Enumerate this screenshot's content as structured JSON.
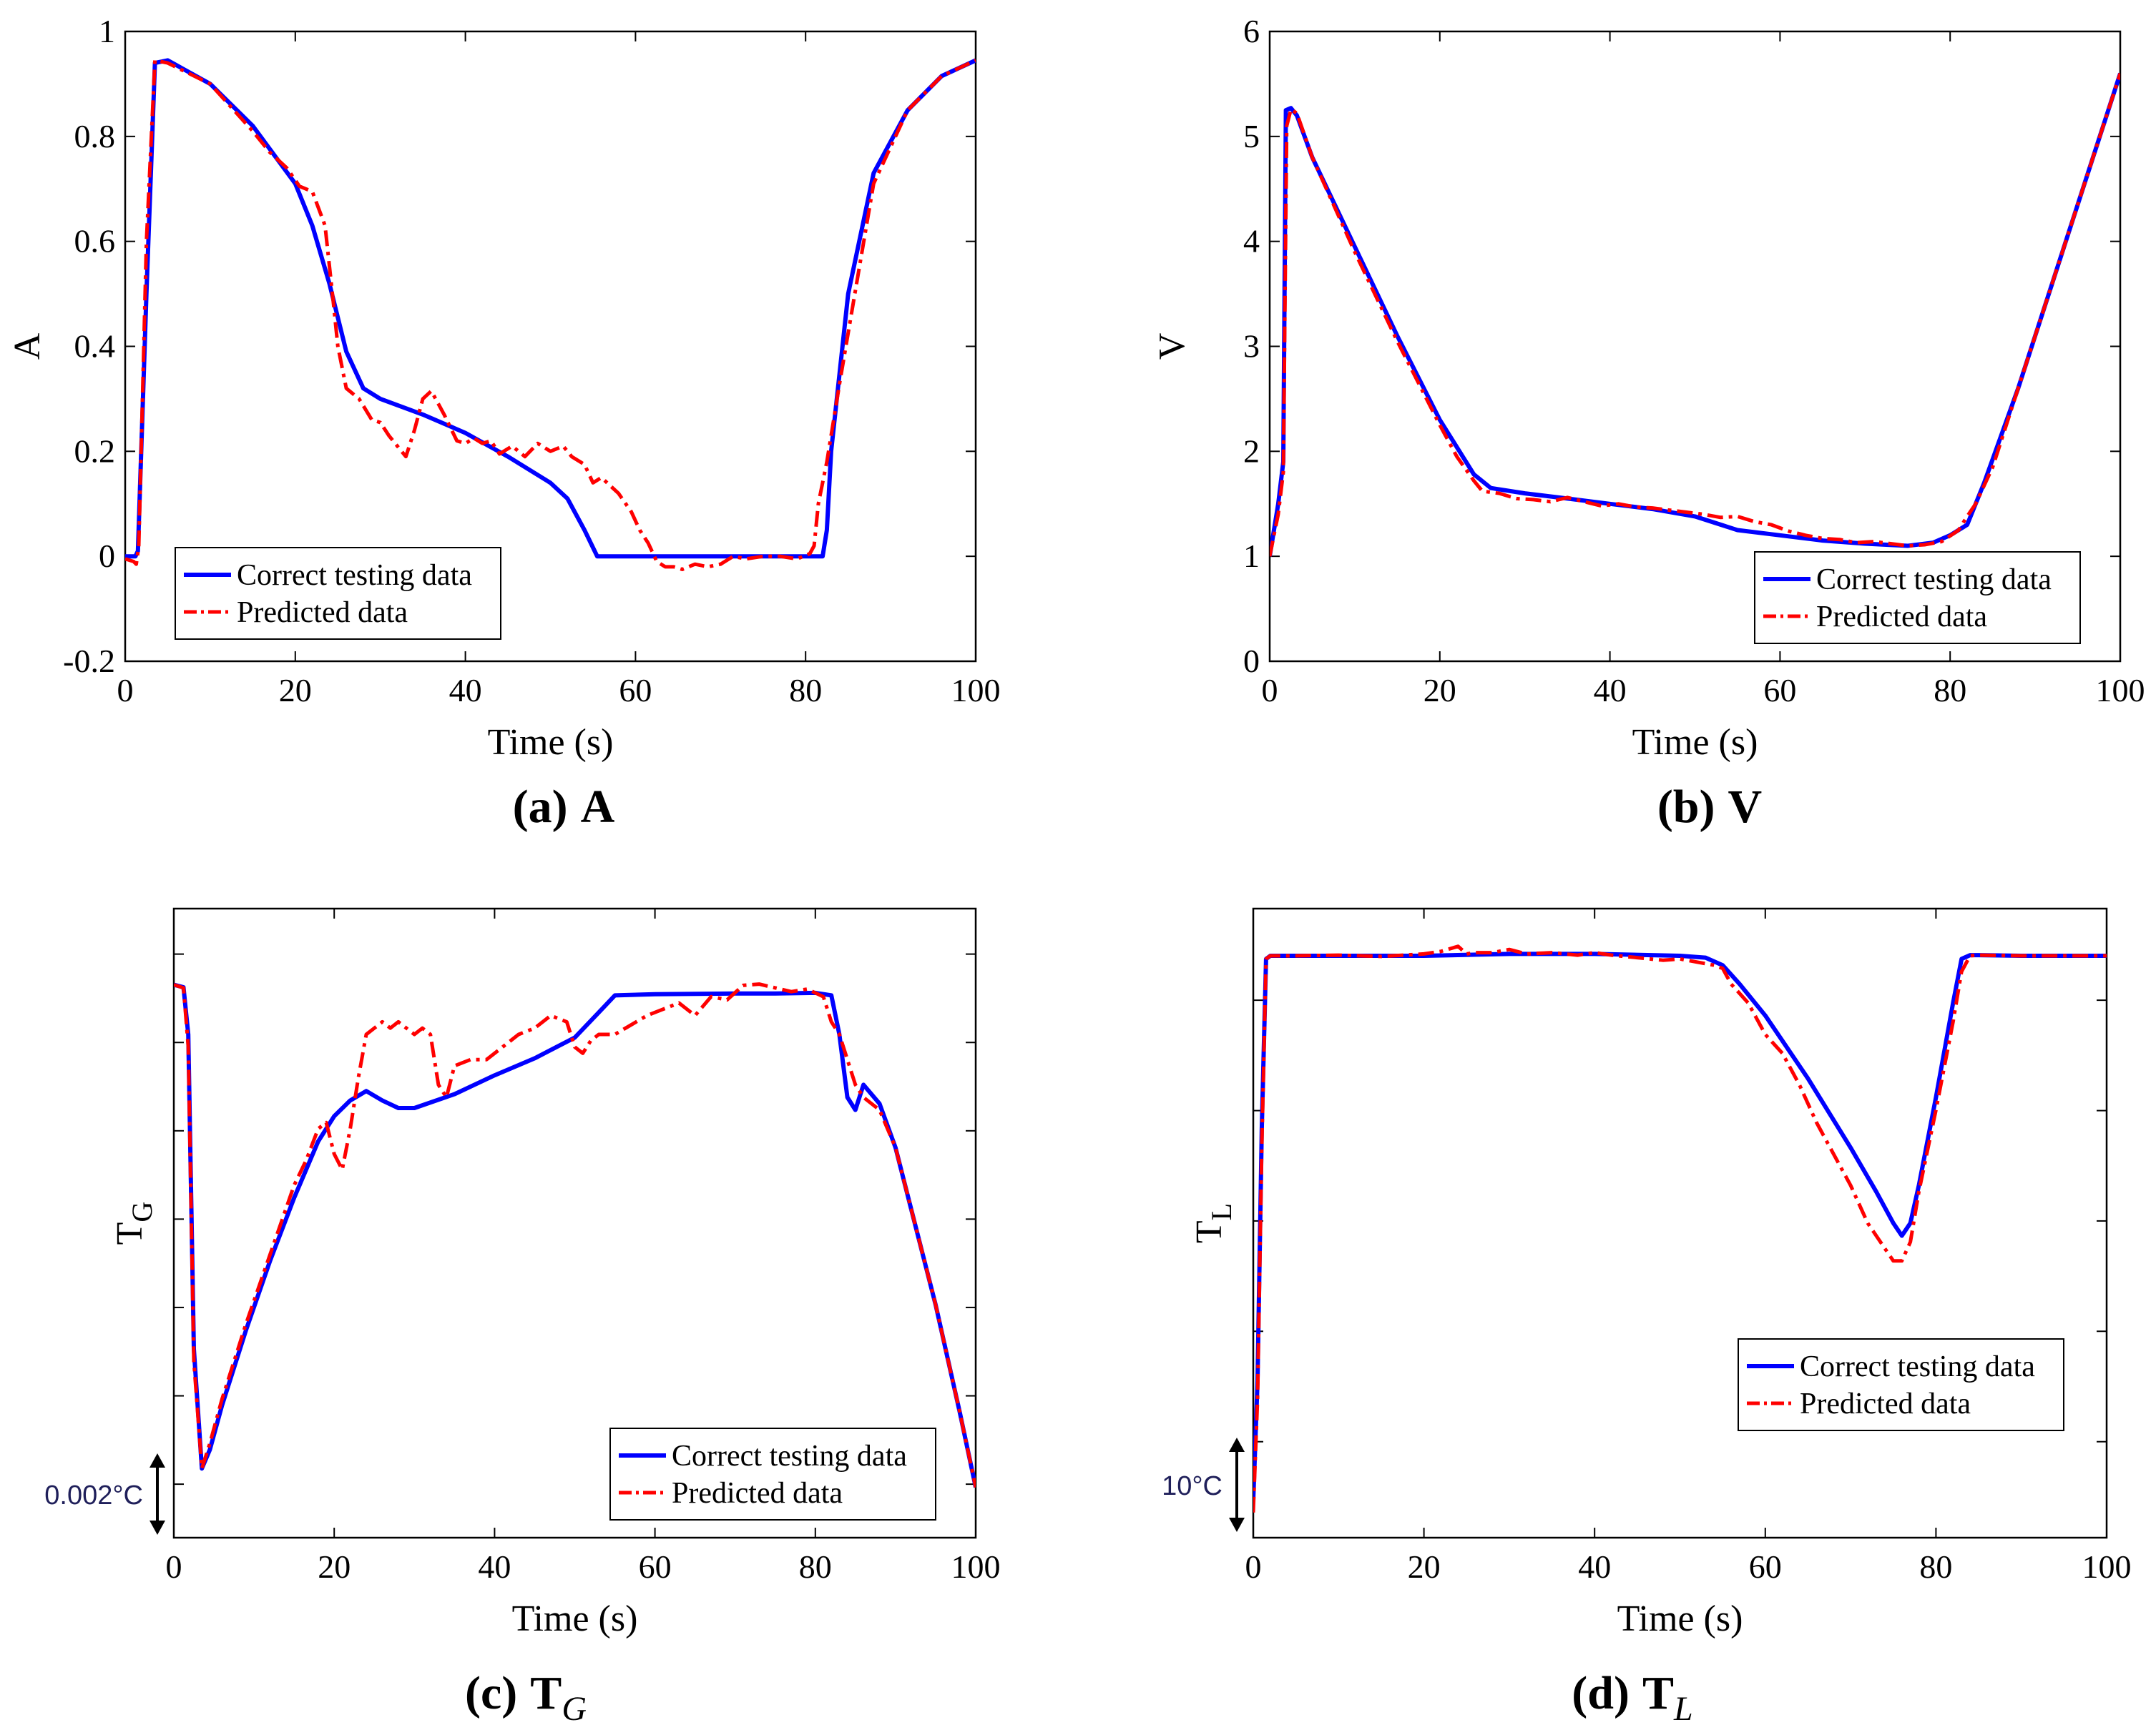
{
  "colors": {
    "correct": "#0000ff",
    "predicted": "#ff0000",
    "axis": "#000000",
    "scale_text": "#1f1f5a"
  },
  "chart_data": [
    {
      "id": "a",
      "type": "line",
      "caption_label": "(a)",
      "caption_var": "A",
      "caption_sub": "",
      "xlabel": "Time (s)",
      "ylabel": "A",
      "ylabel_sub": "",
      "xlim": [
        0,
        100
      ],
      "ylim": [
        -0.2,
        1
      ],
      "xticks": [
        0,
        20,
        40,
        60,
        80,
        100
      ],
      "xtick_labels": [
        "0",
        "20",
        "40",
        "60",
        "80",
        "100"
      ],
      "yticks": [
        -0.2,
        0,
        0.2,
        0.4,
        0.6,
        0.8,
        1
      ],
      "ytick_labels": [
        "-0.2",
        "0",
        "0.2",
        "0.4",
        "0.6",
        "0.8",
        "1"
      ],
      "legend_position": "bottom-left",
      "legend": [
        "Correct testing data",
        "Predicted data"
      ],
      "scale_annotation": "",
      "series": [
        {
          "name": "Correct testing data",
          "style": "solid",
          "x": [
            0,
            1.2,
            1.5,
            2.5,
            3.5,
            5,
            10,
            15,
            20,
            22,
            24,
            26,
            28,
            30,
            35,
            40,
            45,
            50,
            52,
            54,
            55.5,
            60,
            70,
            80,
            82,
            82.5,
            83,
            85,
            88,
            92,
            96,
            100
          ],
          "y": [
            0,
            0,
            0.01,
            0.5,
            0.94,
            0.945,
            0.9,
            0.82,
            0.71,
            0.63,
            0.52,
            0.39,
            0.32,
            0.3,
            0.27,
            0.235,
            0.19,
            0.14,
            0.11,
            0.05,
            0,
            0,
            0,
            0,
            0,
            0.05,
            0.2,
            0.5,
            0.73,
            0.85,
            0.915,
            0.945
          ]
        },
        {
          "name": "Predicted data",
          "style": "dashdot",
          "x": [
            0,
            1,
            1.3,
            1.6,
            2.5,
            3.5,
            5,
            10,
            15,
            17,
            19,
            20.5,
            22,
            23.5,
            24.5,
            25,
            26,
            27.5,
            29,
            30,
            31,
            32,
            33,
            34,
            35,
            36,
            37.5,
            39,
            40,
            41,
            42,
            43,
            44,
            45.5,
            47,
            48.5,
            50,
            51.5,
            52.5,
            54,
            55,
            56,
            58,
            59.5,
            60.5,
            61.5,
            62.5,
            63.5,
            64.5,
            65.5,
            67,
            68.5,
            70,
            71.5,
            73,
            75,
            77,
            79,
            80.5,
            81,
            81.5,
            82.5,
            84,
            86,
            88,
            92,
            96,
            100
          ],
          "y": [
            -0.005,
            -0.01,
            -0.015,
            0.02,
            0.6,
            0.945,
            0.94,
            0.9,
            0.81,
            0.77,
            0.74,
            0.705,
            0.695,
            0.63,
            0.48,
            0.4,
            0.32,
            0.3,
            0.26,
            0.255,
            0.23,
            0.21,
            0.19,
            0.24,
            0.3,
            0.315,
            0.27,
            0.22,
            0.215,
            0.225,
            0.215,
            0.22,
            0.195,
            0.21,
            0.19,
            0.215,
            0.2,
            0.21,
            0.19,
            0.175,
            0.14,
            0.15,
            0.12,
            0.085,
            0.05,
            0.025,
            -0.01,
            -0.02,
            -0.02,
            -0.025,
            -0.015,
            -0.02,
            -0.015,
            0,
            -0.005,
            0,
            0,
            -0.005,
            0.005,
            0.02,
            0.1,
            0.18,
            0.33,
            0.52,
            0.71,
            0.85,
            0.915,
            0.945
          ]
        }
      ]
    },
    {
      "id": "b",
      "type": "line",
      "caption_label": "(b)",
      "caption_var": "V",
      "caption_sub": "",
      "xlabel": "Time (s)",
      "ylabel": "V",
      "ylabel_sub": "",
      "xlim": [
        0,
        100
      ],
      "ylim": [
        0,
        6
      ],
      "xticks": [
        0,
        20,
        40,
        60,
        80,
        100
      ],
      "xtick_labels": [
        "0",
        "20",
        "40",
        "60",
        "80",
        "100"
      ],
      "yticks": [
        0,
        1,
        2,
        3,
        4,
        5,
        6
      ],
      "ytick_labels": [
        "0",
        "1",
        "2",
        "3",
        "4",
        "5",
        "6"
      ],
      "legend_position": "bottom-right",
      "legend": [
        "Correct testing data",
        "Predicted data"
      ],
      "scale_annotation": "",
      "series": [
        {
          "name": "Correct testing data",
          "style": "solid",
          "x": [
            0,
            1,
            1.6,
            1.9,
            2.5,
            3.2,
            5,
            10,
            15,
            20,
            24,
            26,
            30,
            35,
            40,
            45,
            50,
            55,
            60,
            65,
            70,
            75,
            78,
            80,
            82,
            84,
            88,
            92,
            96,
            100
          ],
          "y": [
            1,
            1.5,
            1.9,
            5.25,
            5.27,
            5.2,
            4.8,
            3.95,
            3.1,
            2.3,
            1.78,
            1.65,
            1.6,
            1.55,
            1.5,
            1.45,
            1.38,
            1.25,
            1.2,
            1.15,
            1.12,
            1.1,
            1.13,
            1.2,
            1.3,
            1.7,
            2.6,
            3.6,
            4.6,
            5.6
          ]
        },
        {
          "name": "Predicted data",
          "style": "dashdot",
          "x": [
            0,
            1,
            1.6,
            2.0,
            2.5,
            3.2,
            5,
            10,
            15,
            20,
            22,
            24,
            25,
            27,
            29,
            31,
            33,
            35,
            37,
            39,
            41,
            43,
            45,
            47,
            49,
            51,
            53,
            55,
            57,
            59,
            61,
            63,
            65,
            67,
            69,
            71,
            73,
            75,
            77,
            79,
            81,
            82,
            83,
            85,
            88,
            92,
            96,
            100
          ],
          "y": [
            1,
            1.4,
            1.8,
            5.1,
            5.26,
            5.22,
            4.8,
            3.9,
            3.05,
            2.25,
            1.95,
            1.72,
            1.62,
            1.6,
            1.55,
            1.54,
            1.52,
            1.56,
            1.52,
            1.48,
            1.5,
            1.47,
            1.46,
            1.44,
            1.42,
            1.4,
            1.37,
            1.38,
            1.33,
            1.3,
            1.24,
            1.2,
            1.17,
            1.16,
            1.13,
            1.14,
            1.12,
            1.1,
            1.11,
            1.14,
            1.25,
            1.38,
            1.5,
            1.85,
            2.6,
            3.6,
            4.6,
            5.6
          ]
        }
      ]
    },
    {
      "id": "c",
      "type": "line",
      "caption_label": "(c)",
      "caption_var": "T",
      "caption_sub": "G",
      "xlabel": "Time (s)",
      "ylabel": "T",
      "ylabel_sub": "G",
      "xlim": [
        0,
        100
      ],
      "ylim": [
        0,
        1
      ],
      "xticks": [
        0,
        20,
        40,
        60,
        80,
        100
      ],
      "xtick_labels": [
        "0",
        "20",
        "40",
        "60",
        "80",
        "100"
      ],
      "yticks": [
        0.0851,
        0.2255,
        0.366,
        0.5064,
        0.6468,
        0.7872,
        0.9277
      ],
      "ytick_labels": [],
      "legend_position": "bottom-right",
      "legend": [
        "Correct testing data",
        "Predicted data"
      ],
      "scale_annotation": "0.002°C",
      "series": [
        {
          "name": "Correct testing data",
          "style": "solid",
          "x": [
            0,
            1.2,
            1.8,
            2.5,
            3.5,
            4.5,
            6,
            9,
            12,
            15,
            18,
            20,
            22,
            24,
            26,
            28,
            30,
            35,
            40,
            45,
            50,
            53,
            55,
            60,
            70,
            75,
            80,
            82,
            83,
            84,
            85,
            86,
            88,
            90,
            92,
            95,
            98,
            100
          ],
          "y": [
            0.879,
            0.875,
            0.8,
            0.3,
            0.11,
            0.14,
            0.21,
            0.33,
            0.44,
            0.54,
            0.63,
            0.67,
            0.695,
            0.71,
            0.695,
            0.683,
            0.683,
            0.705,
            0.735,
            0.762,
            0.795,
            0.835,
            0.862,
            0.864,
            0.865,
            0.865,
            0.866,
            0.862,
            0.8,
            0.7,
            0.68,
            0.72,
            0.69,
            0.62,
            0.52,
            0.37,
            0.2,
            0.08
          ]
        },
        {
          "name": "Predicted data",
          "style": "dashdot",
          "x": [
            0,
            1.2,
            1.8,
            2.5,
            3.5,
            4.5,
            6,
            9,
            12,
            15,
            16.5,
            18,
            19,
            20,
            21,
            22,
            23,
            24,
            25,
            26,
            27,
            28,
            29,
            30,
            31,
            32,
            33,
            34,
            35,
            37,
            39,
            41,
            43,
            45,
            47,
            49,
            50,
            51,
            52,
            53,
            55,
            57,
            59,
            61,
            63,
            65,
            67,
            69,
            71,
            73,
            75,
            77,
            79,
            80,
            81,
            82,
            83,
            84,
            85,
            86,
            88,
            90,
            92,
            95,
            98,
            100
          ],
          "y": [
            0.879,
            0.874,
            0.78,
            0.28,
            0.11,
            0.15,
            0.22,
            0.34,
            0.45,
            0.56,
            0.6,
            0.65,
            0.66,
            0.61,
            0.585,
            0.65,
            0.73,
            0.8,
            0.81,
            0.82,
            0.81,
            0.82,
            0.81,
            0.8,
            0.81,
            0.8,
            0.72,
            0.7,
            0.75,
            0.76,
            0.76,
            0.78,
            0.8,
            0.81,
            0.83,
            0.82,
            0.78,
            0.77,
            0.79,
            0.8,
            0.8,
            0.815,
            0.83,
            0.84,
            0.85,
            0.83,
            0.86,
            0.855,
            0.878,
            0.88,
            0.874,
            0.868,
            0.872,
            0.866,
            0.86,
            0.82,
            0.8,
            0.76,
            0.72,
            0.7,
            0.68,
            0.62,
            0.52,
            0.37,
            0.2,
            0.08
          ]
        }
      ]
    },
    {
      "id": "d",
      "type": "line",
      "caption_label": "(d)",
      "caption_var": "T",
      "caption_sub": "L",
      "xlabel": "Time (s)",
      "ylabel": "T",
      "ylabel_sub": "L",
      "xlim": [
        0,
        100
      ],
      "ylim": [
        0,
        1
      ],
      "xticks": [
        0,
        20,
        40,
        60,
        80,
        100
      ],
      "xtick_labels": [
        "0",
        "20",
        "40",
        "60",
        "80",
        "100"
      ],
      "yticks": [
        0.1526,
        0.3281,
        0.5035,
        0.6789,
        0.8544
      ],
      "ytick_labels": [],
      "legend_position": "bottom-right",
      "legend": [
        "Correct testing data",
        "Predicted data"
      ],
      "scale_annotation": "10°C",
      "series": [
        {
          "name": "Correct testing data",
          "style": "solid",
          "x": [
            0,
            0.5,
            1,
            1.5,
            2,
            5,
            20,
            30,
            40,
            50,
            53,
            55,
            57,
            60,
            65,
            70,
            73,
            75,
            76,
            77,
            78,
            80,
            82,
            83,
            84,
            85,
            90,
            100
          ],
          "y": [
            0.06,
            0.25,
            0.65,
            0.92,
            0.925,
            0.925,
            0.925,
            0.928,
            0.928,
            0.925,
            0.922,
            0.91,
            0.88,
            0.83,
            0.73,
            0.62,
            0.55,
            0.5,
            0.48,
            0.5,
            0.56,
            0.7,
            0.85,
            0.92,
            0.926,
            0.926,
            0.925,
            0.925
          ]
        },
        {
          "name": "Predicted data",
          "style": "dashdot",
          "x": [
            0,
            0.5,
            1,
            1.5,
            2,
            5,
            10,
            15,
            20,
            22,
            24,
            25,
            26,
            28,
            30,
            32,
            35,
            38,
            40,
            42,
            45,
            48,
            50,
            52,
            54,
            55,
            56,
            58,
            60,
            62,
            64,
            66,
            68,
            70,
            72,
            74,
            75,
            76,
            77,
            78,
            80,
            82,
            83,
            84,
            85,
            90,
            100
          ],
          "y": [
            0.04,
            0.22,
            0.62,
            0.92,
            0.925,
            0.925,
            0.926,
            0.924,
            0.928,
            0.932,
            0.94,
            0.928,
            0.93,
            0.93,
            0.935,
            0.928,
            0.93,
            0.926,
            0.93,
            0.926,
            0.922,
            0.918,
            0.92,
            0.915,
            0.91,
            0.905,
            0.88,
            0.85,
            0.8,
            0.77,
            0.72,
            0.66,
            0.61,
            0.56,
            0.5,
            0.46,
            0.44,
            0.44,
            0.47,
            0.55,
            0.68,
            0.82,
            0.9,
            0.925,
            0.926,
            0.925,
            0.925
          ]
        }
      ]
    }
  ]
}
